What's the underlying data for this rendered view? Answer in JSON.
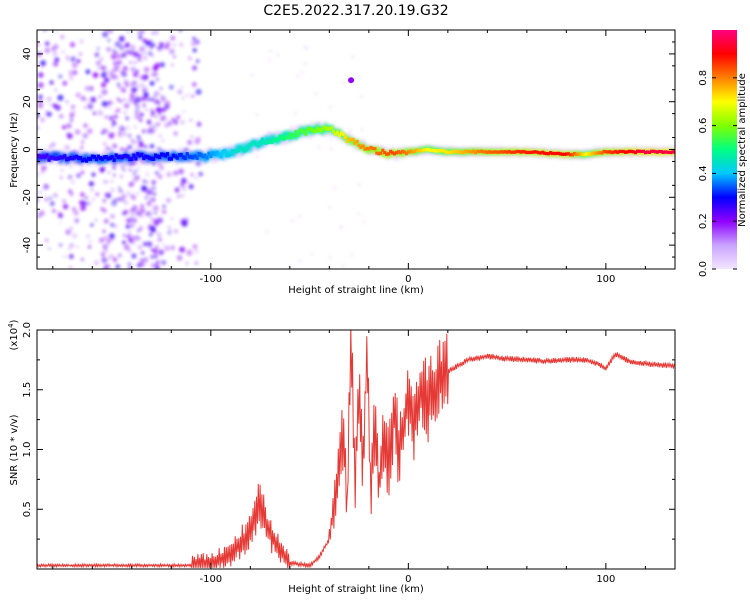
{
  "title": "C2E5.2022.317.20.19.G32",
  "chart_data": [
    {
      "type": "heatmap",
      "title": "C2E5.2022.317.20.19.G32",
      "xlabel": "Height of straight line (km)",
      "ylabel": "Frequency (Hz)",
      "xlim": [
        -188,
        135
      ],
      "ylim": [
        -50,
        50
      ],
      "xticks": [
        -100,
        0,
        100
      ],
      "yticks": [
        -40,
        -20,
        0,
        20,
        40
      ],
      "colorbar": {
        "label": "Normalized spectral amplitude",
        "range": [
          0,
          1
        ],
        "ticks": [
          "0.0",
          "0.2",
          "0.4",
          "0.6",
          "0.8"
        ],
        "colors": [
          "#f3e6ff",
          "#c9a3ff",
          "#8f00ff",
          "#0000ff",
          "#00c8ff",
          "#00ff80",
          "#80ff00",
          "#ffff00",
          "#ff8000",
          "#ff0000",
          "#ff0080"
        ]
      },
      "ridge": {
        "x": [
          -188,
          -160,
          -140,
          -120,
          -105,
          -95,
          -85,
          -75,
          -65,
          -55,
          -45,
          -38,
          -30,
          -22,
          -15,
          -8,
          0,
          10,
          20,
          40,
          60,
          80,
          90,
          100,
          110,
          120,
          135
        ],
        "frequency": [
          -3,
          -4,
          -3,
          -3,
          -3,
          -2,
          0,
          3,
          5,
          7,
          9,
          8,
          4,
          1,
          -1,
          -2,
          -1,
          0,
          -1,
          -1,
          -1,
          -2,
          -2,
          -1,
          -1,
          -1,
          -1
        ],
        "amplitude": [
          0.25,
          0.3,
          0.28,
          0.3,
          0.35,
          0.4,
          0.45,
          0.45,
          0.5,
          0.55,
          0.6,
          0.65,
          0.75,
          0.8,
          0.82,
          0.85,
          0.8,
          0.7,
          0.72,
          0.82,
          0.88,
          0.9,
          0.7,
          0.85,
          0.9,
          0.95,
          0.95
        ]
      },
      "outlier": {
        "x": -29,
        "frequency": 29
      }
    },
    {
      "type": "line",
      "title": "",
      "xlabel": "Height of straight line (km)",
      "ylabel": "SNR (10 * v/v)",
      "yscale_label": "(x10",
      "yscale_exp": "4",
      "yscale_close": ")",
      "xlim": [
        -188,
        135
      ],
      "ylim": [
        0,
        2.0
      ],
      "xticks": [
        -100,
        0,
        100
      ],
      "yticks": [
        "0.5",
        "1.0",
        "1.5",
        "2.0"
      ],
      "color": "#e53935",
      "series": [
        {
          "x": [
            -188,
            -150,
            -110,
            -100,
            -90,
            -85,
            -80,
            -76,
            -70,
            -65,
            -60,
            -50,
            -45,
            -40,
            -37,
            -35,
            -33,
            -31,
            -29,
            -27,
            -25,
            -23,
            -21,
            -19,
            -17,
            -15,
            -12,
            -10,
            -7,
            -5,
            -2,
            0,
            3,
            6,
            10,
            15,
            20,
            25,
            30,
            40,
            50,
            60,
            70,
            80,
            90,
            95,
            100,
            105,
            110,
            115,
            120,
            125,
            135
          ],
          "y": [
            0.03,
            0.03,
            0.03,
            0.05,
            0.12,
            0.22,
            0.3,
            0.55,
            0.3,
            0.15,
            0.05,
            0.03,
            0.1,
            0.25,
            0.6,
            0.8,
            1.2,
            0.5,
            1.95,
            0.7,
            1.5,
            0.8,
            1.85,
            0.6,
            1.2,
            0.7,
            1.1,
            0.9,
            1.3,
            1.0,
            1.25,
            1.45,
            1.2,
            1.5,
            1.4,
            1.6,
            1.65,
            1.7,
            1.75,
            1.78,
            1.76,
            1.75,
            1.74,
            1.75,
            1.75,
            1.72,
            1.68,
            1.8,
            1.75,
            1.72,
            1.72,
            1.71,
            1.7
          ]
        }
      ]
    }
  ]
}
